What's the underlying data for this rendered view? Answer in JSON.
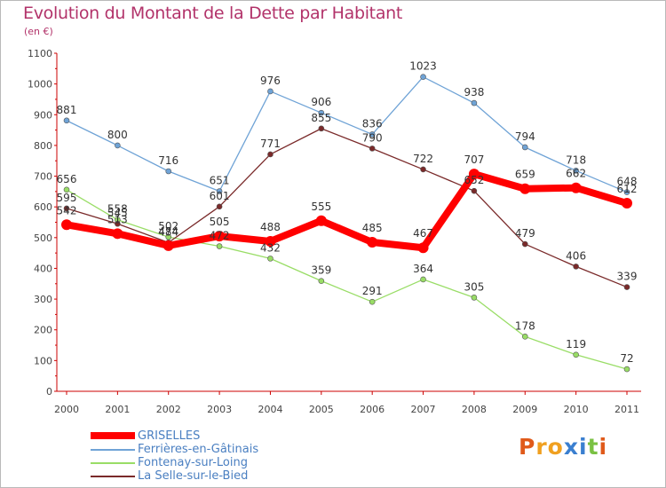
{
  "header": {
    "title": "Evolution du Montant de la Dette par Habitant",
    "subtitle": "(en €)"
  },
  "brand": {
    "text": "Proxiti",
    "colors": [
      "#e05a1a",
      "#f0a020",
      "#f0a020",
      "#3a7fd0",
      "#3a7fd0",
      "#7ac143",
      "#e05a1a"
    ]
  },
  "chart_data": {
    "type": "line",
    "title": "Evolution du Montant de la Dette par Habitant",
    "ylabel": "(en €)",
    "xlabel": "",
    "x": [
      "2000",
      "2001",
      "2002",
      "2003",
      "2004",
      "2005",
      "2006",
      "2007",
      "2008",
      "2009",
      "2010",
      "2011"
    ],
    "ylim": [
      0,
      1100
    ],
    "yticks": [
      0,
      100,
      200,
      300,
      400,
      500,
      600,
      700,
      800,
      900,
      1000,
      1100
    ],
    "grid": false,
    "legend_position": "bottom-left",
    "series": [
      {
        "name": "GRISELLES",
        "color": "#ff0000",
        "values": [
          542,
          513,
          474,
          505,
          488,
          555,
          485,
          467,
          707,
          659,
          662,
          612
        ]
      },
      {
        "name": "Ferrières-en-Gâtinais",
        "color": "#6fa3d6",
        "values": [
          881,
          800,
          716,
          651,
          976,
          906,
          836,
          1023,
          938,
          794,
          718,
          648
        ]
      },
      {
        "name": "Fontenay-sur-Loing",
        "color": "#99dd66",
        "values": [
          656,
          558,
          502,
          472,
          432,
          359,
          291,
          364,
          305,
          178,
          119,
          72
        ]
      },
      {
        "name": "La Selle-sur-le-Bied",
        "color": "#7a2a2a",
        "values": [
          595,
          545,
          484,
          601,
          771,
          855,
          790,
          722,
          652,
          479,
          406,
          339
        ]
      }
    ]
  }
}
